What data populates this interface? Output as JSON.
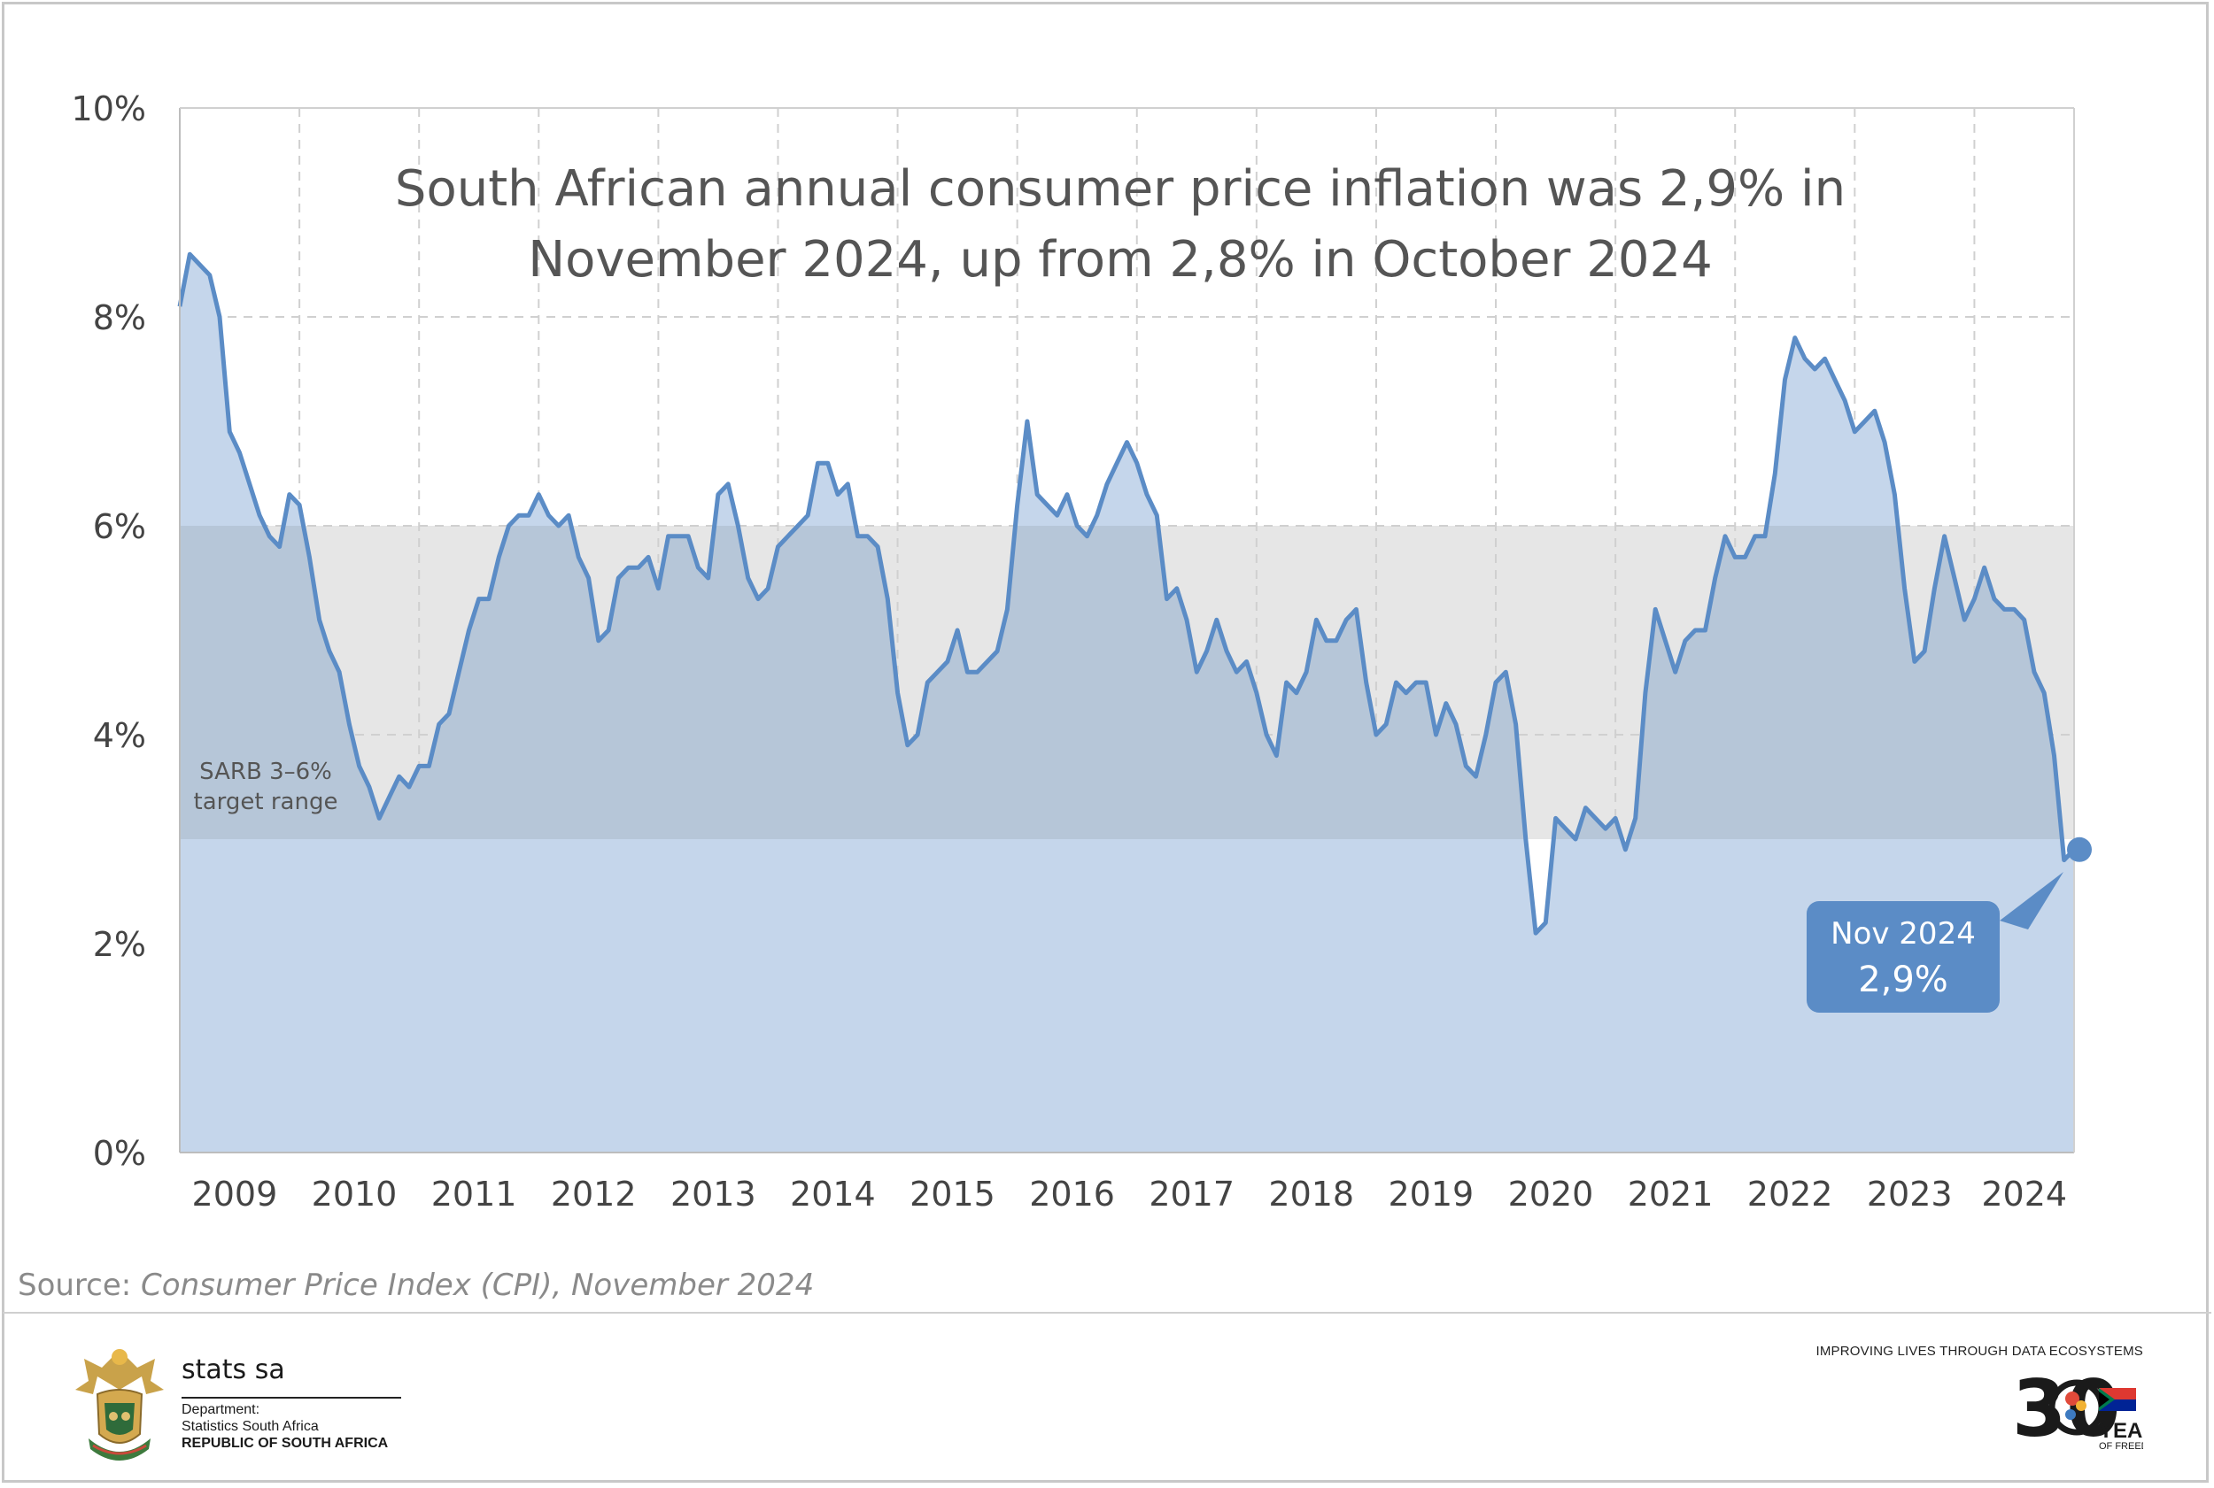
{
  "source": {
    "prefix": "Source: ",
    "text": "Consumer Price Index (CPI), November 2024"
  },
  "footer": {
    "org_name": "stats sa",
    "dept_line1": "Department:",
    "dept_line2": "Statistics South Africa",
    "dept_line3": "REPUBLIC OF SOUTH AFRICA",
    "tagline": "IMPROVING LIVES THROUGH DATA ECOSYSTEMS",
    "badge_number": "30",
    "badge_word": "YEARS",
    "badge_sub": "OF FREEDOM"
  },
  "colors": {
    "line": "#5b8cc6",
    "fill": "#c5d6eb",
    "band": "#e6e6e6",
    "band_overlap": "#b6c6d8",
    "callout": "#5b8cc6",
    "grid": "#d0d0d0"
  },
  "chart_data": {
    "type": "area",
    "title_lines": [
      "South African annual consumer price inflation was 2,9% in",
      "November 2024, up from 2,8% in October 2024"
    ],
    "xlabel": "",
    "ylabel": "",
    "ylim": [
      0,
      10
    ],
    "y_ticks": [
      "0%",
      "2%",
      "4%",
      "6%",
      "8%",
      "10%"
    ],
    "x_ticks": [
      "2009",
      "2010",
      "2011",
      "2012",
      "2013",
      "2014",
      "2015",
      "2016",
      "2017",
      "2018",
      "2019",
      "2020",
      "2021",
      "2022",
      "2023",
      "2024"
    ],
    "grid": true,
    "start": "2009-01",
    "end": "2024-11",
    "target_band": {
      "low": 3,
      "high": 6,
      "label_lines": [
        "SARB 3–6%",
        "target range"
      ]
    },
    "callout": {
      "line1": "Nov 2024",
      "line2": "2,9%",
      "x": "2024-11",
      "y": 2.9
    },
    "series": [
      {
        "values": [
          8.1,
          8.6,
          8.5,
          8.4,
          8.0,
          6.9,
          6.7,
          6.4,
          6.1,
          5.9,
          5.8,
          6.3,
          6.2,
          5.7,
          5.1,
          4.8,
          4.6,
          4.1,
          3.7,
          3.5,
          3.2,
          3.4,
          3.6,
          3.5,
          3.7,
          3.7,
          4.1,
          4.2,
          4.6,
          5.0,
          5.3,
          5.3,
          5.7,
          6.0,
          6.1,
          6.1,
          6.3,
          6.1,
          6.0,
          6.1,
          5.7,
          5.5,
          4.9,
          5.0,
          5.5,
          5.6,
          5.6,
          5.7,
          5.4,
          5.9,
          5.9,
          5.9,
          5.6,
          5.5,
          6.3,
          6.4,
          6.0,
          5.5,
          5.3,
          5.4,
          5.8,
          5.9,
          6.0,
          6.1,
          6.6,
          6.6,
          6.3,
          6.4,
          5.9,
          5.9,
          5.8,
          5.3,
          4.4,
          3.9,
          4.0,
          4.5,
          4.6,
          4.7,
          5.0,
          4.6,
          4.6,
          4.7,
          4.8,
          5.2,
          6.2,
          7.0,
          6.3,
          6.2,
          6.1,
          6.3,
          6.0,
          5.9,
          6.1,
          6.4,
          6.6,
          6.8,
          6.6,
          6.3,
          6.1,
          5.3,
          5.4,
          5.1,
          4.6,
          4.8,
          5.1,
          4.8,
          4.6,
          4.7,
          4.4,
          4.0,
          3.8,
          4.5,
          4.4,
          4.6,
          5.1,
          4.9,
          4.9,
          5.1,
          5.2,
          4.5,
          4.0,
          4.1,
          4.5,
          4.4,
          4.5,
          4.5,
          4.0,
          4.3,
          4.1,
          3.7,
          3.6,
          4.0,
          4.5,
          4.6,
          4.1,
          3.0,
          2.1,
          2.2,
          3.2,
          3.1,
          3.0,
          3.3,
          3.2,
          3.1,
          3.2,
          2.9,
          3.2,
          4.4,
          5.2,
          4.9,
          4.6,
          4.9,
          5.0,
          5.0,
          5.5,
          5.9,
          5.7,
          5.7,
          5.9,
          5.9,
          6.5,
          7.4,
          7.8,
          7.6,
          7.5,
          7.6,
          7.4,
          7.2,
          6.9,
          7.0,
          7.1,
          6.8,
          6.3,
          5.4,
          4.7,
          4.8,
          5.4,
          5.9,
          5.5,
          5.1,
          5.3,
          5.6,
          5.3,
          5.2,
          5.2,
          5.1,
          4.6,
          4.4,
          3.8,
          2.8,
          2.9
        ]
      }
    ]
  }
}
